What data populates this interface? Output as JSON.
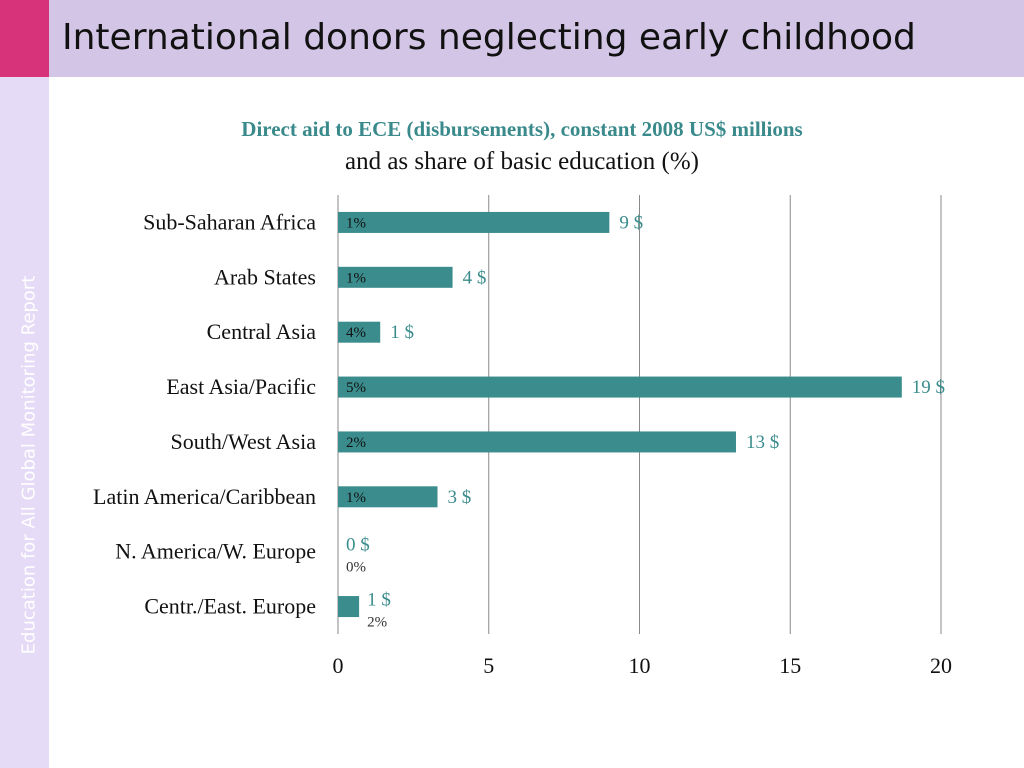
{
  "slide": {
    "title": "International donors neglecting early childhood",
    "side_label": "Education for All Global Monitoring Report"
  },
  "colors": {
    "bar": "#3b8c8d",
    "title_bar": "#d3c5e6",
    "accent": "#d6337a",
    "side_strip": "#e6dbf7",
    "chart_title": "#3a8a8c"
  },
  "chart_data": {
    "type": "bar",
    "orientation": "horizontal",
    "title": "Direct aid to ECE (disbursements), constant 2008 US$ millions",
    "subtitle": "and as share of basic education (%)",
    "categories": [
      "Sub-Saharan Africa",
      "Arab States",
      "Central Asia",
      "East Asia/Pacific",
      "South/West Asia",
      "Latin America/Caribbean",
      "N. America/W. Europe",
      "Centr./East. Europe"
    ],
    "values": [
      9,
      3.8,
      1.4,
      18.7,
      13.2,
      3.3,
      0,
      0.7
    ],
    "value_labels": [
      "9 $",
      "4 $",
      "1 $",
      "19 $",
      "13 $",
      "3 $",
      "0 $",
      "1 $"
    ],
    "share_labels": [
      "1%",
      "1%",
      "4%",
      "5%",
      "2%",
      "1%",
      "0%",
      "2%"
    ],
    "xlim": [
      0,
      20
    ],
    "xticks": [
      0,
      5,
      10,
      15,
      20
    ],
    "grid": true
  }
}
